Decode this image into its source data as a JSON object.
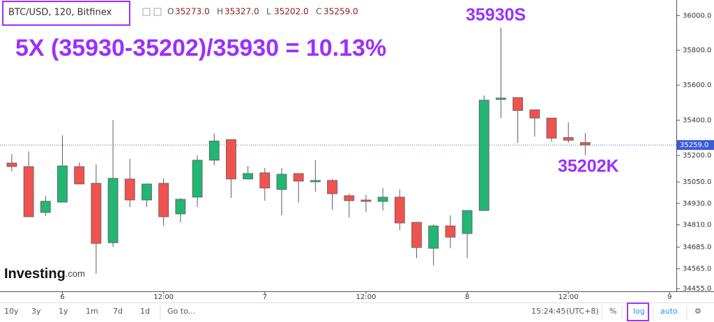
{
  "header": {
    "symbol": "BTC/USD, 120, Bitfinex",
    "ohlc": [
      {
        "key": "O",
        "value": "35273.0"
      },
      {
        "key": "H",
        "value": "35327.0"
      },
      {
        "key": "L",
        "value": "35202.0"
      },
      {
        "key": "C",
        "value": "35259.0"
      }
    ]
  },
  "chart_data": {
    "type": "candlestick",
    "log": true,
    "grid": false,
    "up_color": "#22b573",
    "down_color": "#ef5350",
    "outline_color": "#5b5b5b",
    "annotations": [
      "5X (35930-35202)/35930 = 10.13%",
      "35930S",
      "35202K"
    ],
    "x": [
      -6,
      -4,
      -2,
      0,
      2,
      4,
      6,
      8,
      10,
      12,
      14,
      16,
      18,
      20,
      22,
      24,
      26,
      28,
      30,
      32,
      34,
      36,
      38,
      40,
      42,
      44,
      46,
      48,
      50,
      52,
      54,
      56,
      58,
      60,
      62
    ],
    "open": [
      35157,
      35137,
      34879,
      34937,
      35137,
      35043,
      34710,
      35067,
      34949,
      35043,
      34871,
      34965,
      35173,
      35290,
      35067,
      35102,
      35008,
      35098,
      35051,
      35059,
      34973,
      34949,
      34941,
      34965,
      34824,
      34679,
      34804,
      34761,
      34890,
      35518,
      35529,
      35459,
      35412,
      35302,
      35273
    ],
    "high": [
      35208,
      35223,
      34973,
      35314,
      35161,
      35149,
      35400,
      35180,
      35043,
      35071,
      34961,
      35200,
      35325,
      35290,
      35141,
      35129,
      35129,
      35098,
      35173,
      35067,
      34984,
      34977,
      35016,
      35008,
      34824,
      34812,
      34863,
      34890,
      35541,
      35930,
      35529,
      35459,
      35412,
      35388,
      35327
    ],
    "low": [
      35110,
      34855,
      34859,
      34937,
      35039,
      34538,
      34686,
      34910,
      34910,
      34804,
      34824,
      34910,
      35145,
      34961,
      35067,
      34945,
      34863,
      34933,
      34996,
      34894,
      34851,
      34882,
      34890,
      34781,
      34624,
      34585,
      34679,
      34624,
      34890,
      35412,
      35271,
      35306,
      35278,
      35271,
      35202
    ],
    "close": [
      35137,
      34855,
      34942,
      35141,
      35039,
      34706,
      35071,
      34949,
      35039,
      34855,
      34953,
      35173,
      35282,
      35067,
      35098,
      35016,
      35094,
      35055,
      35059,
      34984,
      34945,
      34941,
      34965,
      34820,
      34683,
      34804,
      34741,
      34890,
      35514,
      35526,
      35455,
      35412,
      35298,
      35286,
      35259
    ],
    "last_price": {
      "value": 35259,
      "label": "35259.0"
    },
    "xlim": [
      -7.4,
      72.8
    ],
    "xticks": [
      {
        "value": 0,
        "label": "6"
      },
      {
        "value": 12,
        "label": "12:00"
      },
      {
        "value": 24,
        "label": "7"
      },
      {
        "value": 36,
        "label": "12:00"
      },
      {
        "value": 48,
        "label": "8"
      },
      {
        "value": 60,
        "label": "12:00"
      },
      {
        "value": 72,
        "label": "9"
      }
    ],
    "ylim": [
      34440,
      36090
    ],
    "yticks": [
      {
        "value": 36000,
        "label": "36000.0"
      },
      {
        "value": 35800,
        "label": "35800.0"
      },
      {
        "value": 35600,
        "label": "35600.0"
      },
      {
        "value": 35400,
        "label": "35400.0"
      },
      {
        "value": 35200,
        "label": "35200.0"
      },
      {
        "value": 35050,
        "label": "35050.0"
      },
      {
        "value": 34930,
        "label": "34930.0"
      },
      {
        "value": 34810,
        "label": "34810.0"
      },
      {
        "value": 34685,
        "label": "34685.0"
      },
      {
        "value": 34565,
        "label": "34565.0"
      },
      {
        "value": 34455,
        "label": "34455.0"
      }
    ]
  },
  "watermark": {
    "brand": "Investing",
    "suffix": ".com"
  },
  "toolbar": {
    "ranges": [
      "10y",
      "3y",
      "1y",
      "1m",
      "7d",
      "1d"
    ],
    "goto": "Go to...",
    "clock": "15:24:45",
    "timezone": "(UTC+8)",
    "percent": "%",
    "log": "log",
    "auto": "auto",
    "settings": "⚙"
  }
}
